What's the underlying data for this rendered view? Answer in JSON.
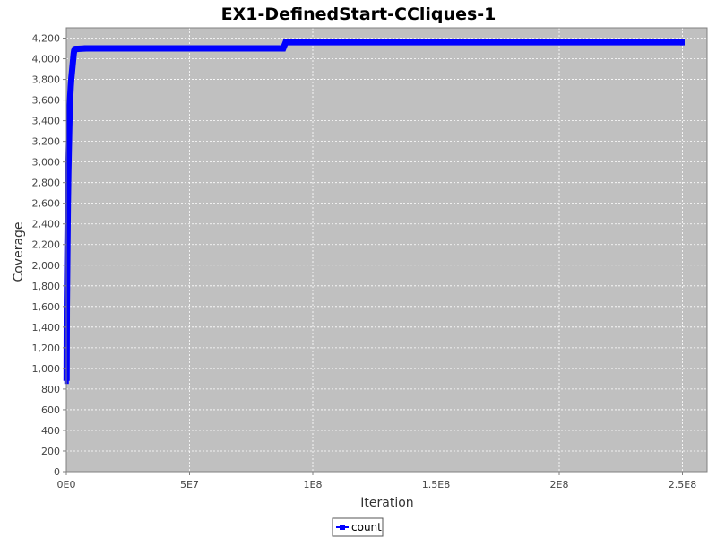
{
  "chart_data": {
    "type": "line",
    "title": "EX1-DefinedStart-CCliques-1",
    "xlabel": "Iteration",
    "ylabel": "Coverage",
    "xlim": [
      0,
      260000000
    ],
    "ylim": [
      0,
      4300
    ],
    "x_ticks": [
      {
        "value": 0,
        "label": "0E0"
      },
      {
        "value": 50000000,
        "label": "5E7"
      },
      {
        "value": 100000000,
        "label": "1E8"
      },
      {
        "value": 150000000,
        "label": "1.5E8"
      },
      {
        "value": 200000000,
        "label": "2E8"
      },
      {
        "value": 250000000,
        "label": "2.5E8"
      }
    ],
    "y_ticks": [
      {
        "value": 0,
        "label": "0"
      },
      {
        "value": 200,
        "label": "200"
      },
      {
        "value": 400,
        "label": "400"
      },
      {
        "value": 600,
        "label": "600"
      },
      {
        "value": 800,
        "label": "800"
      },
      {
        "value": 1000,
        "label": "1,000"
      },
      {
        "value": 1200,
        "label": "1,200"
      },
      {
        "value": 1400,
        "label": "1,400"
      },
      {
        "value": 1600,
        "label": "1,600"
      },
      {
        "value": 1800,
        "label": "1,800"
      },
      {
        "value": 2000,
        "label": "2,000"
      },
      {
        "value": 2200,
        "label": "2,200"
      },
      {
        "value": 2400,
        "label": "2,400"
      },
      {
        "value": 2600,
        "label": "2,600"
      },
      {
        "value": 2800,
        "label": "2,800"
      },
      {
        "value": 3000,
        "label": "3,000"
      },
      {
        "value": 3200,
        "label": "3,200"
      },
      {
        "value": 3400,
        "label": "3,400"
      },
      {
        "value": 3600,
        "label": "3,600"
      },
      {
        "value": 3800,
        "label": "3,800"
      },
      {
        "value": 4000,
        "label": "4,000"
      },
      {
        "value": 4200,
        "label": "4,200"
      }
    ],
    "grid": true,
    "legend_position": "bottom-center",
    "plot_background": "#c0c0c0",
    "series": [
      {
        "name": "count",
        "color": "#0000ff",
        "x": [
          100000,
          200000,
          400000,
          600000,
          800000,
          1000000,
          1200000,
          1400000,
          1600000,
          1800000,
          2000000,
          2200000,
          2400000,
          2600000,
          2800000,
          3000000,
          3200000,
          3400000,
          4000000,
          8000000,
          88000000,
          89000000,
          250000000
        ],
        "y": [
          880,
          1580,
          2100,
          2560,
          2880,
          3120,
          3340,
          3520,
          3640,
          3730,
          3800,
          3850,
          3900,
          3950,
          4000,
          4050,
          4080,
          4090,
          4095,
          4100,
          4100,
          4160,
          4160
        ]
      }
    ]
  }
}
